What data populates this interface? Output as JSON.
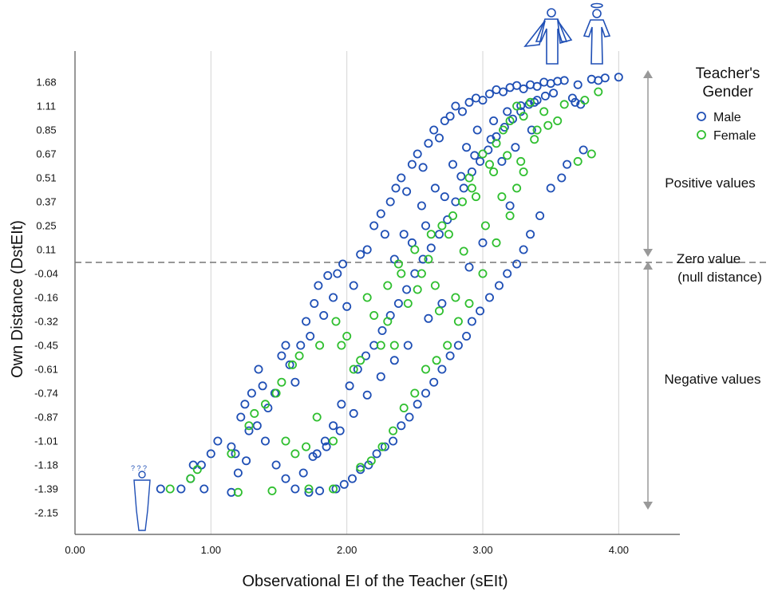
{
  "chart_data": {
    "type": "scatter",
    "title": "",
    "xlabel": "Observational EI of the Teacher (sEIt)",
    "ylabel": "Own Distance (DstEIt)",
    "xlim": [
      0,
      4.45
    ],
    "x_ticks": [
      "0.00",
      "1.00",
      "2.00",
      "3.00",
      "4.00"
    ],
    "y_ticks": [
      "1.68",
      "1.11",
      "0.85",
      "0.67",
      "0.51",
      "0.37",
      "0.25",
      "0.11",
      "-0.04",
      "-0.16",
      "-0.32",
      "-0.45",
      "-0.61",
      "-0.74",
      "-0.87",
      "-1.01",
      "-1.18",
      "-1.39",
      "-2.15"
    ],
    "y_scale": "categorical ranks",
    "grid": "vertical lines at x ticks",
    "zero_line_y": 0.03,
    "legend": {
      "title": "Teacher's Gender",
      "position": "top-right",
      "items": [
        {
          "label": "Male",
          "color": "#1f4fb5"
        },
        {
          "label": "Female",
          "color": "#2fbf2f"
        }
      ]
    },
    "annotations": {
      "positive": "Positive values",
      "zero_line1": "Zero value",
      "zero_line2": "(null distance)",
      "negative": "Negative values"
    },
    "series": [
      {
        "name": "Male",
        "color": "#1f4fb5",
        "points": [
          [
            0.63,
            -1.39
          ],
          [
            0.78,
            -1.39
          ],
          [
            0.87,
            -1.18
          ],
          [
            0.93,
            -1.18
          ],
          [
            0.85,
            -1.3
          ],
          [
            0.95,
            -1.39
          ],
          [
            1.0,
            -1.1
          ],
          [
            1.05,
            -1.01
          ],
          [
            1.15,
            -1.05
          ],
          [
            1.18,
            -1.1
          ],
          [
            1.22,
            -0.87
          ],
          [
            1.25,
            -0.8
          ],
          [
            1.28,
            -0.95
          ],
          [
            1.3,
            -0.74
          ],
          [
            1.35,
            -0.61
          ],
          [
            1.38,
            -0.7
          ],
          [
            1.42,
            -0.82
          ],
          [
            1.47,
            -0.74
          ],
          [
            1.52,
            -0.52
          ],
          [
            1.55,
            -0.45
          ],
          [
            1.58,
            -0.58
          ],
          [
            1.62,
            -0.68
          ],
          [
            1.66,
            -0.45
          ],
          [
            1.7,
            -0.32
          ],
          [
            1.73,
            -0.4
          ],
          [
            1.76,
            -0.2
          ],
          [
            1.79,
            -0.1
          ],
          [
            1.83,
            -0.28
          ],
          [
            1.86,
            -0.05
          ],
          [
            1.9,
            -0.16
          ],
          [
            1.93,
            -0.04
          ],
          [
            1.97,
            0.02
          ],
          [
            2.0,
            -0.22
          ],
          [
            2.05,
            -0.1
          ],
          [
            2.1,
            0.08
          ],
          [
            2.15,
            0.11
          ],
          [
            2.2,
            0.25
          ],
          [
            2.25,
            0.31
          ],
          [
            2.28,
            0.2
          ],
          [
            2.32,
            0.37
          ],
          [
            2.36,
            0.45
          ],
          [
            2.4,
            0.51
          ],
          [
            2.44,
            0.43
          ],
          [
            2.48,
            0.6
          ],
          [
            2.52,
            0.67
          ],
          [
            2.56,
            0.58
          ],
          [
            2.6,
            0.75
          ],
          [
            2.64,
            0.85
          ],
          [
            2.68,
            0.79
          ],
          [
            2.72,
            0.95
          ],
          [
            2.76,
            1.0
          ],
          [
            2.8,
            1.11
          ],
          [
            2.85,
            1.05
          ],
          [
            2.9,
            1.2
          ],
          [
            2.95,
            1.3
          ],
          [
            3.0,
            1.25
          ],
          [
            3.05,
            1.4
          ],
          [
            3.1,
            1.5
          ],
          [
            3.15,
            1.45
          ],
          [
            3.2,
            1.55
          ],
          [
            3.25,
            1.6
          ],
          [
            3.3,
            1.52
          ],
          [
            3.35,
            1.62
          ],
          [
            3.4,
            1.58
          ],
          [
            3.45,
            1.68
          ],
          [
            3.5,
            1.65
          ],
          [
            3.55,
            1.7
          ],
          [
            3.6,
            1.72
          ],
          [
            3.7,
            1.62
          ],
          [
            3.8,
            1.75
          ],
          [
            3.85,
            1.72
          ],
          [
            3.9,
            1.78
          ],
          [
            4.0,
            1.8
          ],
          [
            3.62,
            0.6
          ],
          [
            3.58,
            0.51
          ],
          [
            3.5,
            0.45
          ],
          [
            3.42,
            0.3
          ],
          [
            3.35,
            0.2
          ],
          [
            3.3,
            0.11
          ],
          [
            3.25,
            0.02
          ],
          [
            3.18,
            -0.04
          ],
          [
            3.12,
            -0.1
          ],
          [
            3.05,
            -0.16
          ],
          [
            2.98,
            -0.25
          ],
          [
            2.92,
            -0.32
          ],
          [
            2.88,
            -0.4
          ],
          [
            2.82,
            -0.45
          ],
          [
            2.76,
            -0.52
          ],
          [
            2.7,
            -0.61
          ],
          [
            2.64,
            -0.68
          ],
          [
            2.58,
            -0.74
          ],
          [
            2.52,
            -0.8
          ],
          [
            2.46,
            -0.87
          ],
          [
            2.4,
            -0.92
          ],
          [
            2.34,
            -1.01
          ],
          [
            2.28,
            -1.05
          ],
          [
            2.22,
            -1.1
          ],
          [
            2.16,
            -1.18
          ],
          [
            2.1,
            -1.22
          ],
          [
            2.04,
            -1.3
          ],
          [
            1.98,
            -1.35
          ],
          [
            1.92,
            -1.39
          ],
          [
            1.8,
            -1.45
          ],
          [
            1.72,
            -1.5
          ],
          [
            1.62,
            -1.39
          ],
          [
            1.55,
            -1.3
          ],
          [
            1.48,
            -1.18
          ],
          [
            1.4,
            -1.01
          ],
          [
            1.34,
            -0.92
          ],
          [
            1.26,
            -1.15
          ],
          [
            1.2,
            -1.25
          ],
          [
            1.15,
            -1.5
          ],
          [
            1.78,
            -1.1
          ],
          [
            1.84,
            -1.01
          ],
          [
            1.9,
            -0.92
          ],
          [
            1.96,
            -0.8
          ],
          [
            2.02,
            -0.7
          ],
          [
            2.08,
            -0.61
          ],
          [
            2.14,
            -0.52
          ],
          [
            2.2,
            -0.45
          ],
          [
            2.26,
            -0.37
          ],
          [
            2.32,
            -0.28
          ],
          [
            2.38,
            -0.2
          ],
          [
            2.44,
            -0.12
          ],
          [
            2.5,
            -0.04
          ],
          [
            2.56,
            0.05
          ],
          [
            2.62,
            0.12
          ],
          [
            2.68,
            0.2
          ],
          [
            2.74,
            0.28
          ],
          [
            2.8,
            0.37
          ],
          [
            2.86,
            0.45
          ],
          [
            2.92,
            0.55
          ],
          [
            2.98,
            0.62
          ],
          [
            3.04,
            0.7
          ],
          [
            3.1,
            0.8
          ],
          [
            3.16,
            0.88
          ],
          [
            3.22,
            0.97
          ],
          [
            3.28,
            1.05
          ],
          [
            3.34,
            1.15
          ],
          [
            3.4,
            1.25
          ],
          [
            3.46,
            1.35
          ],
          [
            3.52,
            1.42
          ],
          [
            3.66,
            1.3
          ],
          [
            3.68,
            1.2
          ],
          [
            3.72,
            1.15
          ],
          [
            3.74,
            0.7
          ],
          [
            3.2,
            0.35
          ],
          [
            3.0,
            0.15
          ],
          [
            2.9,
            0.0
          ],
          [
            2.7,
            -0.2
          ],
          [
            2.6,
            -0.3
          ],
          [
            2.45,
            -0.45
          ],
          [
            2.35,
            -0.55
          ],
          [
            2.25,
            -0.65
          ],
          [
            2.15,
            -0.75
          ],
          [
            2.05,
            -0.85
          ],
          [
            1.95,
            -0.95
          ],
          [
            1.85,
            -1.05
          ],
          [
            1.75,
            -1.12
          ],
          [
            1.68,
            -1.25
          ],
          [
            2.42,
            0.2
          ],
          [
            2.55,
            0.35
          ],
          [
            2.65,
            0.45
          ],
          [
            2.78,
            0.6
          ],
          [
            2.88,
            0.72
          ],
          [
            2.96,
            0.85
          ],
          [
            3.08,
            0.95
          ],
          [
            3.18,
            1.05
          ],
          [
            3.28,
            1.12
          ],
          [
            3.38,
            1.2
          ],
          [
            2.35,
            0.05
          ],
          [
            2.48,
            0.15
          ],
          [
            2.58,
            0.25
          ],
          [
            2.72,
            0.4
          ],
          [
            2.84,
            0.52
          ],
          [
            2.94,
            0.66
          ],
          [
            3.06,
            0.78
          ],
          [
            3.14,
            0.62
          ],
          [
            3.24,
            0.72
          ],
          [
            3.36,
            0.85
          ]
        ]
      },
      {
        "name": "Female",
        "color": "#2fbf2f",
        "points": [
          [
            0.7,
            -1.39
          ],
          [
            0.85,
            -1.3
          ],
          [
            0.9,
            -1.22
          ],
          [
            1.15,
            -1.1
          ],
          [
            1.2,
            -1.5
          ],
          [
            1.28,
            -0.92
          ],
          [
            1.32,
            -0.85
          ],
          [
            1.4,
            -0.8
          ],
          [
            1.45,
            -1.45
          ],
          [
            1.48,
            -0.74
          ],
          [
            1.52,
            -0.68
          ],
          [
            1.6,
            -0.58
          ],
          [
            1.65,
            -0.52
          ],
          [
            1.7,
            -1.05
          ],
          [
            1.78,
            -0.87
          ],
          [
            1.8,
            -0.45
          ],
          [
            1.9,
            -1.01
          ],
          [
            1.92,
            -0.32
          ],
          [
            1.96,
            -0.45
          ],
          [
            2.0,
            -0.4
          ],
          [
            2.05,
            -0.61
          ],
          [
            2.1,
            -0.55
          ],
          [
            2.15,
            -0.16
          ],
          [
            2.2,
            -0.28
          ],
          [
            2.25,
            -0.45
          ],
          [
            2.3,
            -0.1
          ],
          [
            2.35,
            -0.45
          ],
          [
            2.4,
            -0.04
          ],
          [
            2.45,
            -0.2
          ],
          [
            2.5,
            0.11
          ],
          [
            2.55,
            -0.04
          ],
          [
            2.6,
            0.05
          ],
          [
            2.65,
            -0.1
          ],
          [
            2.7,
            0.25
          ],
          [
            2.75,
            0.2
          ],
          [
            2.8,
            -0.16
          ],
          [
            2.85,
            0.37
          ],
          [
            2.9,
            0.51
          ],
          [
            2.95,
            0.4
          ],
          [
            3.0,
            0.67
          ],
          [
            3.05,
            0.6
          ],
          [
            3.1,
            0.75
          ],
          [
            3.15,
            0.85
          ],
          [
            3.2,
            0.95
          ],
          [
            3.25,
            1.11
          ],
          [
            3.3,
            1.0
          ],
          [
            3.35,
            1.2
          ],
          [
            3.4,
            0.85
          ],
          [
            3.45,
            1.05
          ],
          [
            3.55,
            0.95
          ],
          [
            3.6,
            1.15
          ],
          [
            3.7,
            0.62
          ],
          [
            3.75,
            1.25
          ],
          [
            3.8,
            0.67
          ],
          [
            3.85,
            1.45
          ],
          [
            3.3,
            0.55
          ],
          [
            3.25,
            0.45
          ],
          [
            3.2,
            0.3
          ],
          [
            3.1,
            0.15
          ],
          [
            3.0,
            -0.04
          ],
          [
            2.9,
            -0.2
          ],
          [
            2.82,
            -0.32
          ],
          [
            2.74,
            -0.45
          ],
          [
            2.66,
            -0.55
          ],
          [
            2.58,
            -0.61
          ],
          [
            2.5,
            -0.74
          ],
          [
            2.42,
            -0.82
          ],
          [
            2.34,
            -0.95
          ],
          [
            2.26,
            -1.05
          ],
          [
            2.18,
            -1.15
          ],
          [
            2.1,
            -1.2
          ],
          [
            1.9,
            -1.39
          ],
          [
            1.72,
            -1.39
          ],
          [
            1.62,
            -1.1
          ],
          [
            1.55,
            -1.01
          ],
          [
            2.62,
            0.2
          ],
          [
            2.78,
            0.3
          ],
          [
            2.92,
            0.45
          ],
          [
            3.08,
            0.55
          ],
          [
            3.18,
            0.66
          ],
          [
            2.38,
            0.02
          ],
          [
            2.52,
            -0.12
          ],
          [
            2.68,
            -0.25
          ],
          [
            2.86,
            0.1
          ],
          [
            3.02,
            0.25
          ],
          [
            3.14,
            0.4
          ],
          [
            3.28,
            0.62
          ],
          [
            3.38,
            0.78
          ],
          [
            3.48,
            0.9
          ],
          [
            2.3,
            -0.32
          ]
        ]
      }
    ]
  }
}
